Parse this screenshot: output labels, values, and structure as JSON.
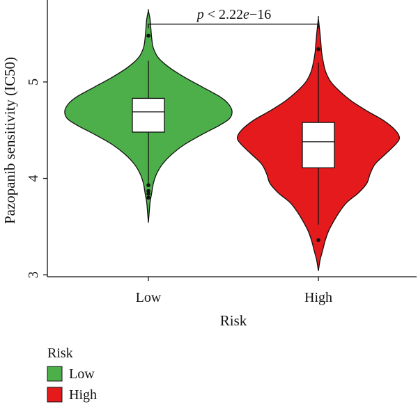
{
  "chart_data": {
    "type": "violin",
    "xlabel": "Risk",
    "ylabel": "Pazopanib sensitivity (IC50)",
    "categories": [
      "Low",
      "High"
    ],
    "ylim": [
      2.98,
      5.85
    ],
    "yticks": [
      3,
      4,
      5
    ],
    "grid": false,
    "legend": {
      "title": "Risk",
      "placement": "bottom-left",
      "items": [
        {
          "label": "Low",
          "color": "#4daf4a"
        },
        {
          "label": "High",
          "color": "#e41a1c"
        }
      ]
    },
    "annotation": {
      "p_symbol": "p",
      "p_rest": " < 2.22",
      "p_exp_symbol": "e",
      "p_exp_rest": "−16"
    },
    "groups": [
      {
        "name": "Low",
        "color": "#4daf4a",
        "min": 3.54,
        "max": 5.74,
        "q1": 4.48,
        "median": 4.69,
        "q3": 4.83,
        "whisker_low": 3.95,
        "whisker_high": 5.22,
        "outliers": [
          5.48,
          3.93,
          3.87,
          3.84,
          3.8
        ],
        "density": [
          [
            3.54,
            0.0
          ],
          [
            3.65,
            0.01
          ],
          [
            3.75,
            0.02
          ],
          [
            3.85,
            0.04
          ],
          [
            3.95,
            0.06
          ],
          [
            4.05,
            0.1
          ],
          [
            4.15,
            0.17
          ],
          [
            4.25,
            0.28
          ],
          [
            4.35,
            0.43
          ],
          [
            4.45,
            0.63
          ],
          [
            4.55,
            0.85
          ],
          [
            4.62,
            0.97
          ],
          [
            4.7,
            1.0
          ],
          [
            4.78,
            0.95
          ],
          [
            4.85,
            0.85
          ],
          [
            4.95,
            0.64
          ],
          [
            5.05,
            0.43
          ],
          [
            5.15,
            0.25
          ],
          [
            5.25,
            0.12
          ],
          [
            5.35,
            0.06
          ],
          [
            5.45,
            0.04
          ],
          [
            5.55,
            0.03
          ],
          [
            5.65,
            0.02
          ],
          [
            5.74,
            0.0
          ]
        ]
      },
      {
        "name": "High",
        "color": "#e41a1c",
        "min": 3.04,
        "max": 5.66,
        "q1": 4.11,
        "median": 4.38,
        "q3": 4.58,
        "whisker_low": 3.52,
        "whisker_high": 5.2,
        "outliers": [
          5.34,
          3.36
        ],
        "density": [
          [
            3.04,
            0.0
          ],
          [
            3.15,
            0.02
          ],
          [
            3.25,
            0.05
          ],
          [
            3.35,
            0.08
          ],
          [
            3.45,
            0.12
          ],
          [
            3.55,
            0.18
          ],
          [
            3.65,
            0.25
          ],
          [
            3.75,
            0.34
          ],
          [
            3.85,
            0.48
          ],
          [
            3.95,
            0.58
          ],
          [
            4.05,
            0.62
          ],
          [
            4.15,
            0.68
          ],
          [
            4.25,
            0.8
          ],
          [
            4.35,
            0.92
          ],
          [
            4.42,
            0.97
          ],
          [
            4.5,
            0.92
          ],
          [
            4.6,
            0.78
          ],
          [
            4.7,
            0.58
          ],
          [
            4.8,
            0.4
          ],
          [
            4.9,
            0.26
          ],
          [
            5.0,
            0.15
          ],
          [
            5.1,
            0.09
          ],
          [
            5.2,
            0.06
          ],
          [
            5.3,
            0.04
          ],
          [
            5.4,
            0.03
          ],
          [
            5.5,
            0.02
          ],
          [
            5.66,
            0.0
          ]
        ]
      }
    ]
  }
}
